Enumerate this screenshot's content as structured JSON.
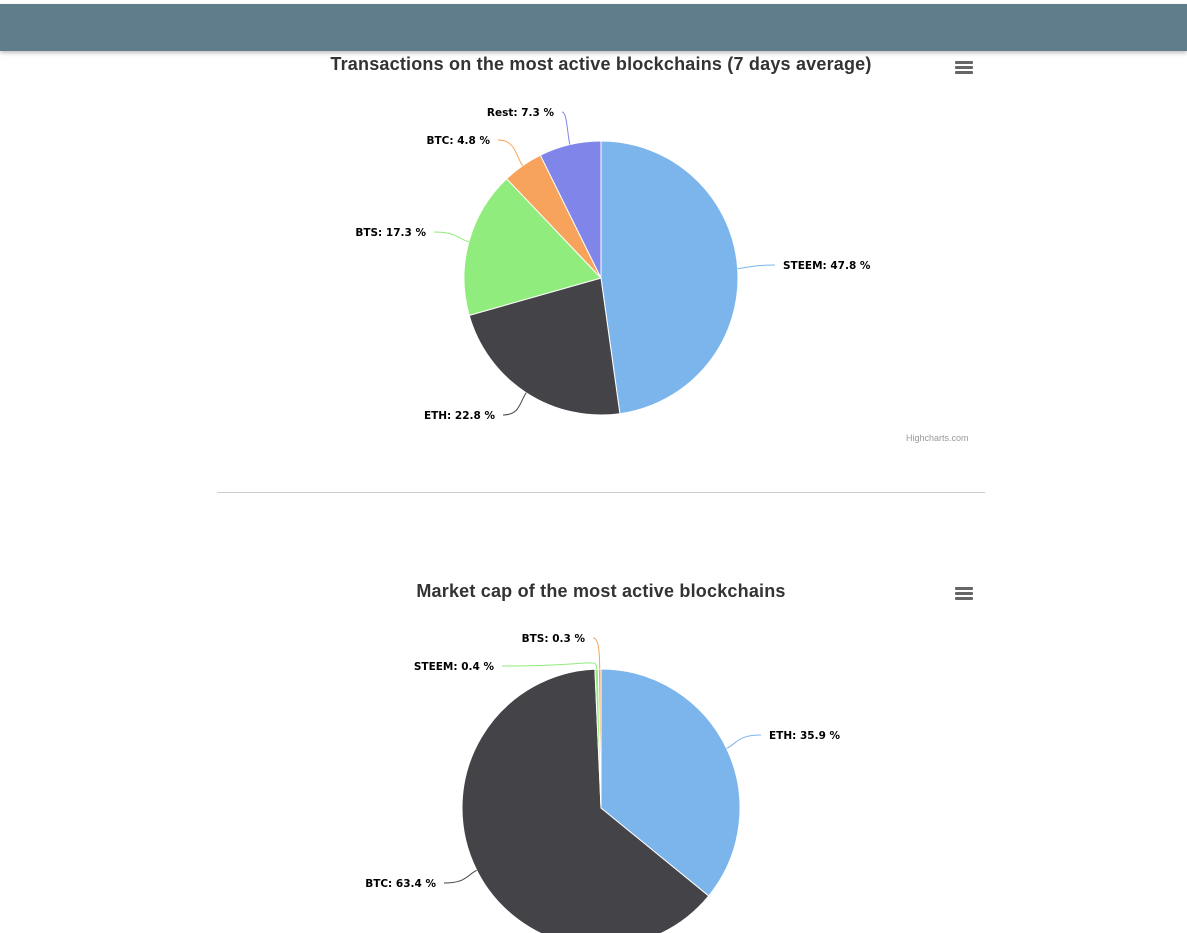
{
  "chart_data": [
    {
      "type": "pie",
      "title": "Transactions on the most active blockchains (7 days average)",
      "unit": "%",
      "slices": [
        {
          "name": "STEEM",
          "value": 47.8,
          "color": "#7cb5ec"
        },
        {
          "name": "ETH",
          "value": 22.8,
          "color": "#434348"
        },
        {
          "name": "BTS",
          "value": 17.3,
          "color": "#90ed7d"
        },
        {
          "name": "BTC",
          "value": 4.8,
          "color": "#f7a35c"
        },
        {
          "name": "Rest",
          "value": 7.3,
          "color": "#8085e9"
        }
      ],
      "legend": "none"
    },
    {
      "type": "pie",
      "title": "Market cap of the most active blockchains",
      "unit": "%",
      "slices": [
        {
          "name": "ETH",
          "value": 35.9,
          "color": "#7cb5ec"
        },
        {
          "name": "BTC",
          "value": 63.4,
          "color": "#434348"
        },
        {
          "name": "STEEM",
          "value": 0.4,
          "color": "#90ed7d"
        },
        {
          "name": "BTS",
          "value": 0.3,
          "color": "#f7a35c"
        }
      ],
      "legend": "none"
    }
  ],
  "credit": "Highcharts.com",
  "colors": {
    "topbar": "#607d8b",
    "divider": "#cccccc",
    "menu_icon": "#666666"
  },
  "icons": {
    "menu": "hamburger-menu-icon"
  }
}
